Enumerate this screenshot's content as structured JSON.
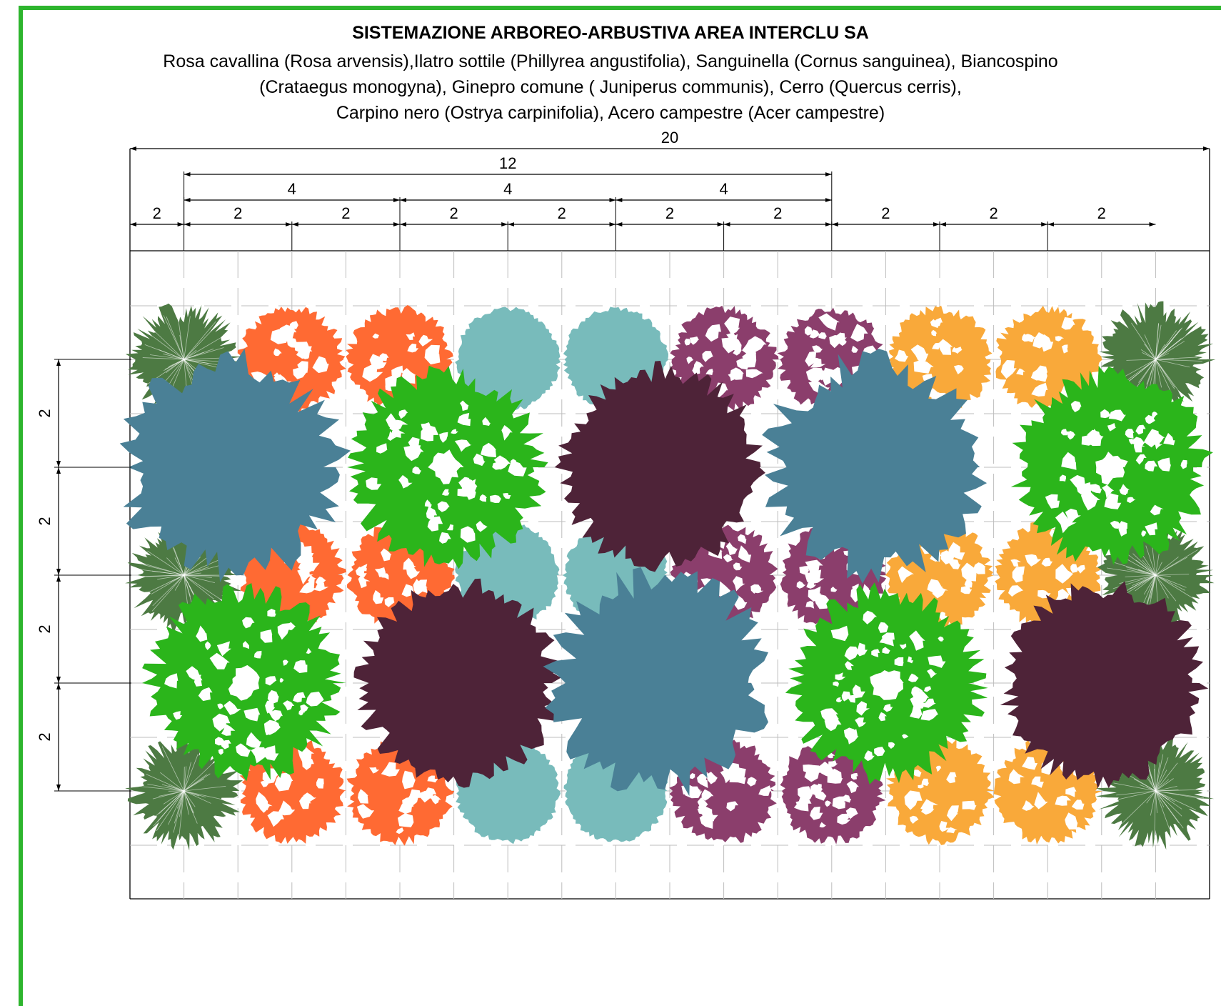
{
  "title": "SISTEMAZIONE ARBOREO-ARBUSTIVA AREA INTERCLU SA",
  "subtitle_lines": [
    "Rosa cavallina (Rosa arvensis),Ilatro sottile (Phillyrea angustifolia), Sanguinella (Cornus sanguinea), Biancospino",
    "(Crataegus monogyna), Ginepro comune ( Juniperus communis), Cerro (Quercus cerris),",
    "Carpino nero (Ostrya carpinifolia), Acero campestre (Acer campestre)"
  ],
  "colors": {
    "frame": "#2db52d",
    "rosa": "#ff6a33",
    "ilatro": "#78bbbb",
    "sanguinella": "#8b3e6c",
    "biancospino": "#f9a93a",
    "ginepro": "#4d7a43",
    "cerro": "#4a8096",
    "carpino": "#4e2338",
    "acero": "#2bb51b"
  },
  "dimensions": {
    "total": "20",
    "span": "12",
    "sub_spans": [
      "4",
      "4",
      "4"
    ],
    "columns": [
      "2",
      "2",
      "2",
      "2",
      "2",
      "2",
      "2",
      "2",
      "2",
      "2"
    ],
    "rows": [
      "2",
      "2",
      "2",
      "2"
    ]
  },
  "plants": {
    "shrub_rows": [
      [
        "ginepro",
        "rosa",
        "rosa",
        "ilatro",
        "ilatro",
        "sanguinella",
        "sanguinella",
        "biancospino",
        "biancospino",
        "ginepro"
      ],
      [
        "ginepro",
        "rosa",
        "rosa",
        "ilatro",
        "ilatro",
        "sanguinella",
        "sanguinella",
        "biancospino",
        "biancospino",
        "ginepro"
      ],
      [
        "ginepro",
        "rosa",
        "rosa",
        "ilatro",
        "ilatro",
        "sanguinella",
        "sanguinella",
        "biancospino",
        "biancospino",
        "ginepro"
      ]
    ],
    "tree_rows": [
      [
        "cerro",
        "acero",
        "carpino",
        "cerro",
        "acero"
      ],
      [
        "acero",
        "carpino",
        "cerro",
        "acero",
        "carpino"
      ]
    ]
  }
}
